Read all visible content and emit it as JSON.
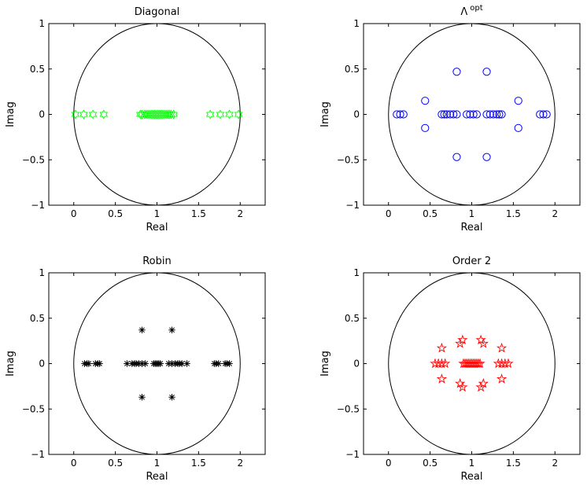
{
  "chart_data": [
    {
      "type": "scatter",
      "title": "Diagonal",
      "xlabel": "Real",
      "ylabel": "Imag",
      "xlim": [
        -0.3,
        2.3
      ],
      "ylim": [
        -1,
        1
      ],
      "xticks": [
        "0",
        "0.5",
        "1",
        "1.5",
        "2"
      ],
      "yticks": [
        "-1",
        "-0.5",
        "0",
        "0.5",
        "1"
      ],
      "grid": false,
      "unit_circle": {
        "center": [
          1,
          0
        ],
        "radius": 1
      },
      "series": [
        {
          "marker": "hexagram",
          "color": "#00ff00",
          "points": [
            [
              0.02,
              0
            ],
            [
              0.12,
              0
            ],
            [
              0.23,
              0
            ],
            [
              0.36,
              0
            ],
            [
              0.8,
              0
            ],
            [
              0.82,
              0
            ],
            [
              0.85,
              0
            ],
            [
              0.87,
              0
            ],
            [
              0.89,
              0
            ],
            [
              0.91,
              0
            ],
            [
              0.93,
              0
            ],
            [
              0.95,
              0
            ],
            [
              0.97,
              0
            ],
            [
              0.99,
              0
            ],
            [
              1.01,
              0
            ],
            [
              1.03,
              0
            ],
            [
              1.05,
              0
            ],
            [
              1.07,
              0
            ],
            [
              1.09,
              0
            ],
            [
              1.11,
              0
            ],
            [
              1.13,
              0
            ],
            [
              1.15,
              0
            ],
            [
              1.17,
              0
            ],
            [
              1.2,
              0
            ],
            [
              1.64,
              0
            ],
            [
              1.76,
              0
            ],
            [
              1.87,
              0
            ],
            [
              1.98,
              0
            ]
          ]
        }
      ]
    },
    {
      "type": "scatter",
      "title": "Λ",
      "title_sup": "opt",
      "xlabel": "Real",
      "ylabel": "Imag",
      "xlim": [
        -0.3,
        2.3
      ],
      "ylim": [
        -1,
        1
      ],
      "xticks": [
        "0",
        "0.5",
        "1",
        "1.5",
        "2"
      ],
      "yticks": [
        "-1",
        "-0.5",
        "0",
        "0.5",
        "1"
      ],
      "grid": false,
      "unit_circle": {
        "center": [
          1,
          0
        ],
        "radius": 1
      },
      "series": [
        {
          "marker": "circle",
          "color": "#0000ff",
          "points": [
            [
              0.1,
              0
            ],
            [
              0.14,
              0
            ],
            [
              0.18,
              0
            ],
            [
              0.44,
              0.15
            ],
            [
              0.44,
              -0.15
            ],
            [
              0.64,
              0
            ],
            [
              0.67,
              0
            ],
            [
              0.7,
              0
            ],
            [
              0.74,
              0
            ],
            [
              0.78,
              0
            ],
            [
              0.82,
              0.47
            ],
            [
              0.82,
              -0.47
            ],
            [
              0.82,
              0
            ],
            [
              0.94,
              0
            ],
            [
              0.98,
              0
            ],
            [
              1.02,
              0
            ],
            [
              1.06,
              0
            ],
            [
              1.18,
              0.47
            ],
            [
              1.18,
              -0.47
            ],
            [
              1.18,
              0
            ],
            [
              1.22,
              0
            ],
            [
              1.26,
              0
            ],
            [
              1.3,
              0
            ],
            [
              1.33,
              0
            ],
            [
              1.36,
              0
            ],
            [
              1.56,
              0.15
            ],
            [
              1.56,
              -0.15
            ],
            [
              1.82,
              0
            ],
            [
              1.86,
              0
            ],
            [
              1.9,
              0
            ]
          ]
        }
      ]
    },
    {
      "type": "scatter",
      "title": "Robin",
      "xlabel": "Real",
      "ylabel": "Imag",
      "xlim": [
        -0.3,
        2.3
      ],
      "ylim": [
        -1,
        1
      ],
      "xticks": [
        "0",
        "0.5",
        "1",
        "1.5",
        "2"
      ],
      "yticks": [
        "-1",
        "-0.5",
        "0",
        "0.5",
        "1"
      ],
      "grid": false,
      "unit_circle": {
        "center": [
          1,
          0
        ],
        "radius": 1
      },
      "series": [
        {
          "marker": "asterisk",
          "color": "#000000",
          "points": [
            [
              0.13,
              0
            ],
            [
              0.16,
              0
            ],
            [
              0.18,
              0
            ],
            [
              0.26,
              0
            ],
            [
              0.29,
              0
            ],
            [
              0.31,
              0
            ],
            [
              0.64,
              0
            ],
            [
              0.7,
              0
            ],
            [
              0.73,
              0
            ],
            [
              0.75,
              0
            ],
            [
              0.78,
              0
            ],
            [
              0.82,
              0.37
            ],
            [
              0.82,
              -0.37
            ],
            [
              0.82,
              0
            ],
            [
              0.86,
              0
            ],
            [
              0.96,
              0
            ],
            [
              0.98,
              0
            ],
            [
              1.0,
              0
            ],
            [
              1.02,
              0
            ],
            [
              1.04,
              0
            ],
            [
              1.14,
              0
            ],
            [
              1.18,
              0.37
            ],
            [
              1.18,
              -0.37
            ],
            [
              1.18,
              0
            ],
            [
              1.22,
              0
            ],
            [
              1.25,
              0
            ],
            [
              1.27,
              0
            ],
            [
              1.3,
              0
            ],
            [
              1.36,
              0
            ],
            [
              1.69,
              0
            ],
            [
              1.71,
              0
            ],
            [
              1.74,
              0
            ],
            [
              1.82,
              0
            ],
            [
              1.84,
              0
            ],
            [
              1.87,
              0
            ]
          ]
        }
      ]
    },
    {
      "type": "scatter",
      "title": "Order 2",
      "xlabel": "Real",
      "ylabel": "Imag",
      "xlim": [
        -0.3,
        2.3
      ],
      "ylim": [
        -1,
        1
      ],
      "xticks": [
        "0",
        "0.5",
        "1",
        "1.5",
        "2"
      ],
      "yticks": [
        "-1",
        "-0.5",
        "0",
        "0.5",
        "1"
      ],
      "grid": false,
      "unit_circle": {
        "center": [
          1,
          0
        ],
        "radius": 1
      },
      "series": [
        {
          "marker": "pentagram",
          "color": "#ff0000",
          "points": [
            [
              0.56,
              0
            ],
            [
              0.6,
              0
            ],
            [
              0.64,
              0
            ],
            [
              0.68,
              0
            ],
            [
              0.64,
              0.17
            ],
            [
              0.64,
              -0.17
            ],
            [
              0.86,
              0.22
            ],
            [
              0.86,
              -0.22
            ],
            [
              0.9,
              0
            ],
            [
              0.92,
              0
            ],
            [
              0.94,
              0
            ],
            [
              0.96,
              0
            ],
            [
              0.98,
              0
            ],
            [
              1.0,
              0
            ],
            [
              1.02,
              0
            ],
            [
              1.04,
              0
            ],
            [
              1.06,
              0
            ],
            [
              1.08,
              0
            ],
            [
              1.1,
              0
            ],
            [
              0.89,
              0.26
            ],
            [
              0.89,
              -0.26
            ],
            [
              1.11,
              0.26
            ],
            [
              1.11,
              -0.26
            ],
            [
              1.14,
              0.22
            ],
            [
              1.14,
              -0.22
            ],
            [
              1.32,
              0
            ],
            [
              1.36,
              0
            ],
            [
              1.4,
              0
            ],
            [
              1.44,
              0
            ],
            [
              1.36,
              0.17
            ],
            [
              1.36,
              -0.17
            ]
          ]
        }
      ]
    }
  ]
}
